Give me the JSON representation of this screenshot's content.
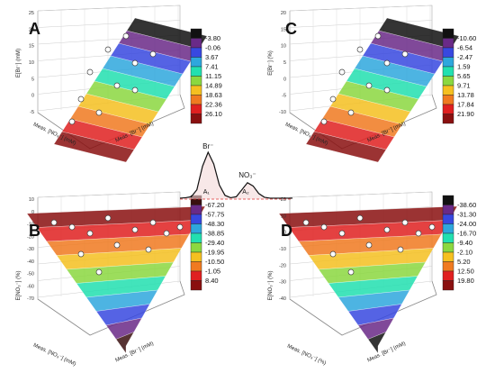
{
  "chart_data": [
    {
      "type": "surface",
      "panel": "A",
      "zlabel": "E[Br⁻] (mM)",
      "xlabel": "Meas. [Br⁻] (mM)",
      "ylabel": "Meas. [NO₃⁻] (mM)",
      "zticks": [
        "25",
        "20",
        "15",
        "10",
        "5",
        "0",
        "-5"
      ],
      "legend": [
        "-3.80",
        "-0.06",
        "3.67",
        "7.41",
        "11.15",
        "14.89",
        "18.63",
        "22.36",
        "26.10"
      ],
      "colors": [
        "#111111",
        "#6a2a88",
        "#3848e0",
        "#2ea7dd",
        "#22e0b0",
        "#8bd840",
        "#f5c020",
        "#f07a20",
        "#e02020",
        "#8a1010"
      ]
    },
    {
      "type": "surface",
      "panel": "C",
      "zlabel": "E[Br⁻] (%)",
      "xlabel": "Meas. [Br⁻] (mM)",
      "ylabel": "Meas. [NO₃⁻] (mM)",
      "zticks": [
        "20",
        "15",
        "10",
        "5",
        "0",
        "-5",
        "-10"
      ],
      "legend": [
        "-10.60",
        "-6.54",
        "-2.47",
        "1.59",
        "5.65",
        "9.71",
        "13.78",
        "17.84",
        "21.90"
      ],
      "colors": [
        "#111111",
        "#6a2a88",
        "#3848e0",
        "#2ea7dd",
        "#22e0b0",
        "#8bd840",
        "#f5c020",
        "#f07a20",
        "#e02020",
        "#8a1010"
      ]
    },
    {
      "type": "surface",
      "panel": "B",
      "zlabel": "E[NO₃⁻] (%)",
      "xlabel": "Meas. [Br⁻] (mM)",
      "ylabel": "Meas. [NO₃⁻] (mM)",
      "zticks": [
        "10",
        "0",
        "-10",
        "-20",
        "-30",
        "-40",
        "-50",
        "-60",
        "-70"
      ],
      "legend": [
        "-67.20",
        "-57.75",
        "-48.30",
        "-38.85",
        "-29.40",
        "-19.95",
        "-10.50",
        "-1.05",
        "8.40"
      ],
      "colors": [
        "#3a1010",
        "#6a2a88",
        "#3848e0",
        "#2ea7dd",
        "#22e0b0",
        "#8bd840",
        "#f5c020",
        "#f07a20",
        "#e02020",
        "#8a1010"
      ]
    },
    {
      "type": "surface",
      "panel": "D",
      "zlabel": "E[NO₃⁻] (%)",
      "xlabel": "Meas. [Br⁻] (mM)",
      "ylabel": "Meas. [NO₃⁻] (%)",
      "zticks": [
        "20",
        "10",
        "0",
        "-10",
        "-20",
        "-30",
        "-40"
      ],
      "legend": [
        "-38.60",
        "-31.30",
        "-24.00",
        "-16.70",
        "-9.40",
        "-2.10",
        "5.20",
        "12.50",
        "19.80"
      ],
      "colors": [
        "#111111",
        "#6a2a88",
        "#3848e0",
        "#2ea7dd",
        "#22e0b0",
        "#8bd840",
        "#f5c020",
        "#f07a20",
        "#e02020",
        "#8a1010"
      ]
    },
    {
      "type": "line",
      "panel": "chromatogram",
      "peak1_label": "Br⁻",
      "peak2_label": "NO₃⁻",
      "area1_label": "A₁",
      "area2_label": "A₂",
      "x": [
        0,
        1,
        2,
        3,
        4,
        5,
        6,
        7,
        8,
        9,
        10,
        11,
        12,
        13,
        14,
        15,
        16,
        17,
        18,
        19,
        20
      ],
      "y": [
        0.02,
        0.03,
        0.05,
        0.2,
        0.7,
        1.0,
        0.75,
        0.3,
        0.08,
        0.03,
        0.05,
        0.2,
        0.35,
        0.28,
        0.12,
        0.04,
        0.02,
        0.02,
        0.02,
        0.02,
        0.02
      ]
    }
  ]
}
